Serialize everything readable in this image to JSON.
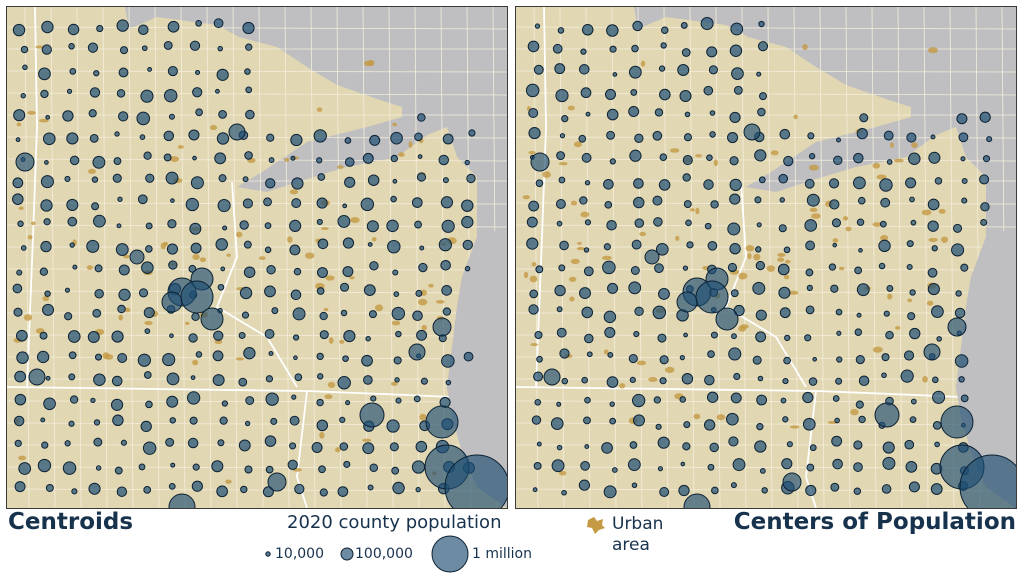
{
  "panels": {
    "left_title": "Centroids",
    "right_title": "Centers of Population"
  },
  "legend": {
    "title": "2020 county population",
    "items": [
      {
        "label": "10,000",
        "value": 10000
      },
      {
        "label": "100,000",
        "value": 100000
      },
      {
        "label": "1 million",
        "value": 1000000
      }
    ],
    "urban_label_line1": "Urban",
    "urban_label_line2": "area"
  },
  "colors": {
    "land": "#e1d7b2",
    "water": "#bfbfc1",
    "county_border": "#f4eedc",
    "state_border": "#ffffff",
    "urban": "#c49a45",
    "circle_fill": "#1e4f73",
    "circle_stroke": "#0d2133",
    "text": "#17324d"
  },
  "icons": {
    "urban_symbol": "urban-area-icon",
    "circle_symbol": "proportional-circle-icon"
  }
}
